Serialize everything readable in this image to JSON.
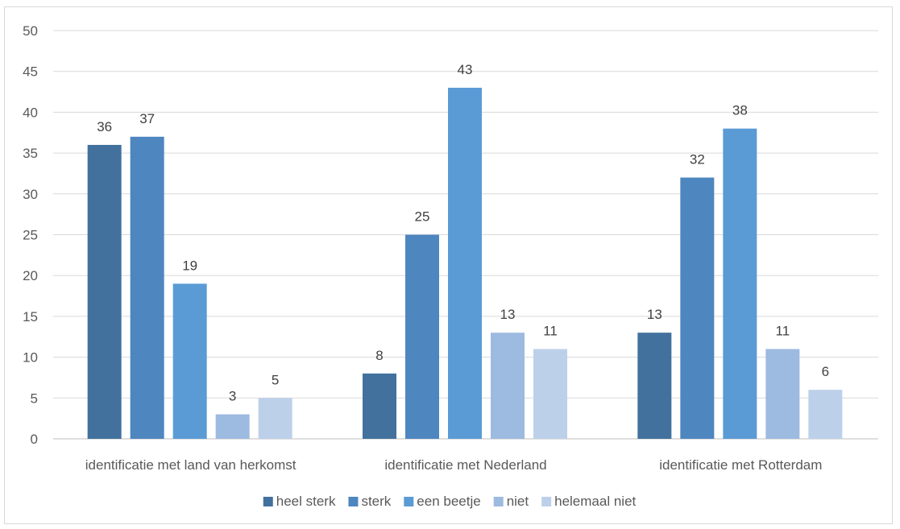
{
  "chart_data": {
    "type": "bar",
    "categories": [
      "identificatie met land van herkomst",
      "identificatie met Nederland",
      "identificatie met Rotterdam"
    ],
    "series": [
      {
        "name": "heel sterk",
        "color": "#41719c",
        "values": [
          36,
          8,
          13
        ]
      },
      {
        "name": "sterk",
        "color": "#4e86bf",
        "values": [
          37,
          25,
          32
        ]
      },
      {
        "name": "een beetje",
        "color": "#5b9bd5",
        "values": [
          19,
          43,
          38
        ]
      },
      {
        "name": "niet",
        "color": "#9dbae0",
        "values": [
          3,
          13,
          11
        ]
      },
      {
        "name": "helemaal niet",
        "color": "#bdd0ea",
        "values": [
          5,
          11,
          6
        ]
      }
    ],
    "yticks": [
      "0",
      "5",
      "10",
      "15",
      "20",
      "25",
      "30",
      "35",
      "40",
      "45",
      "50"
    ],
    "ylim": [
      0,
      50
    ],
    "grid": true,
    "legend_position": "bottom"
  }
}
